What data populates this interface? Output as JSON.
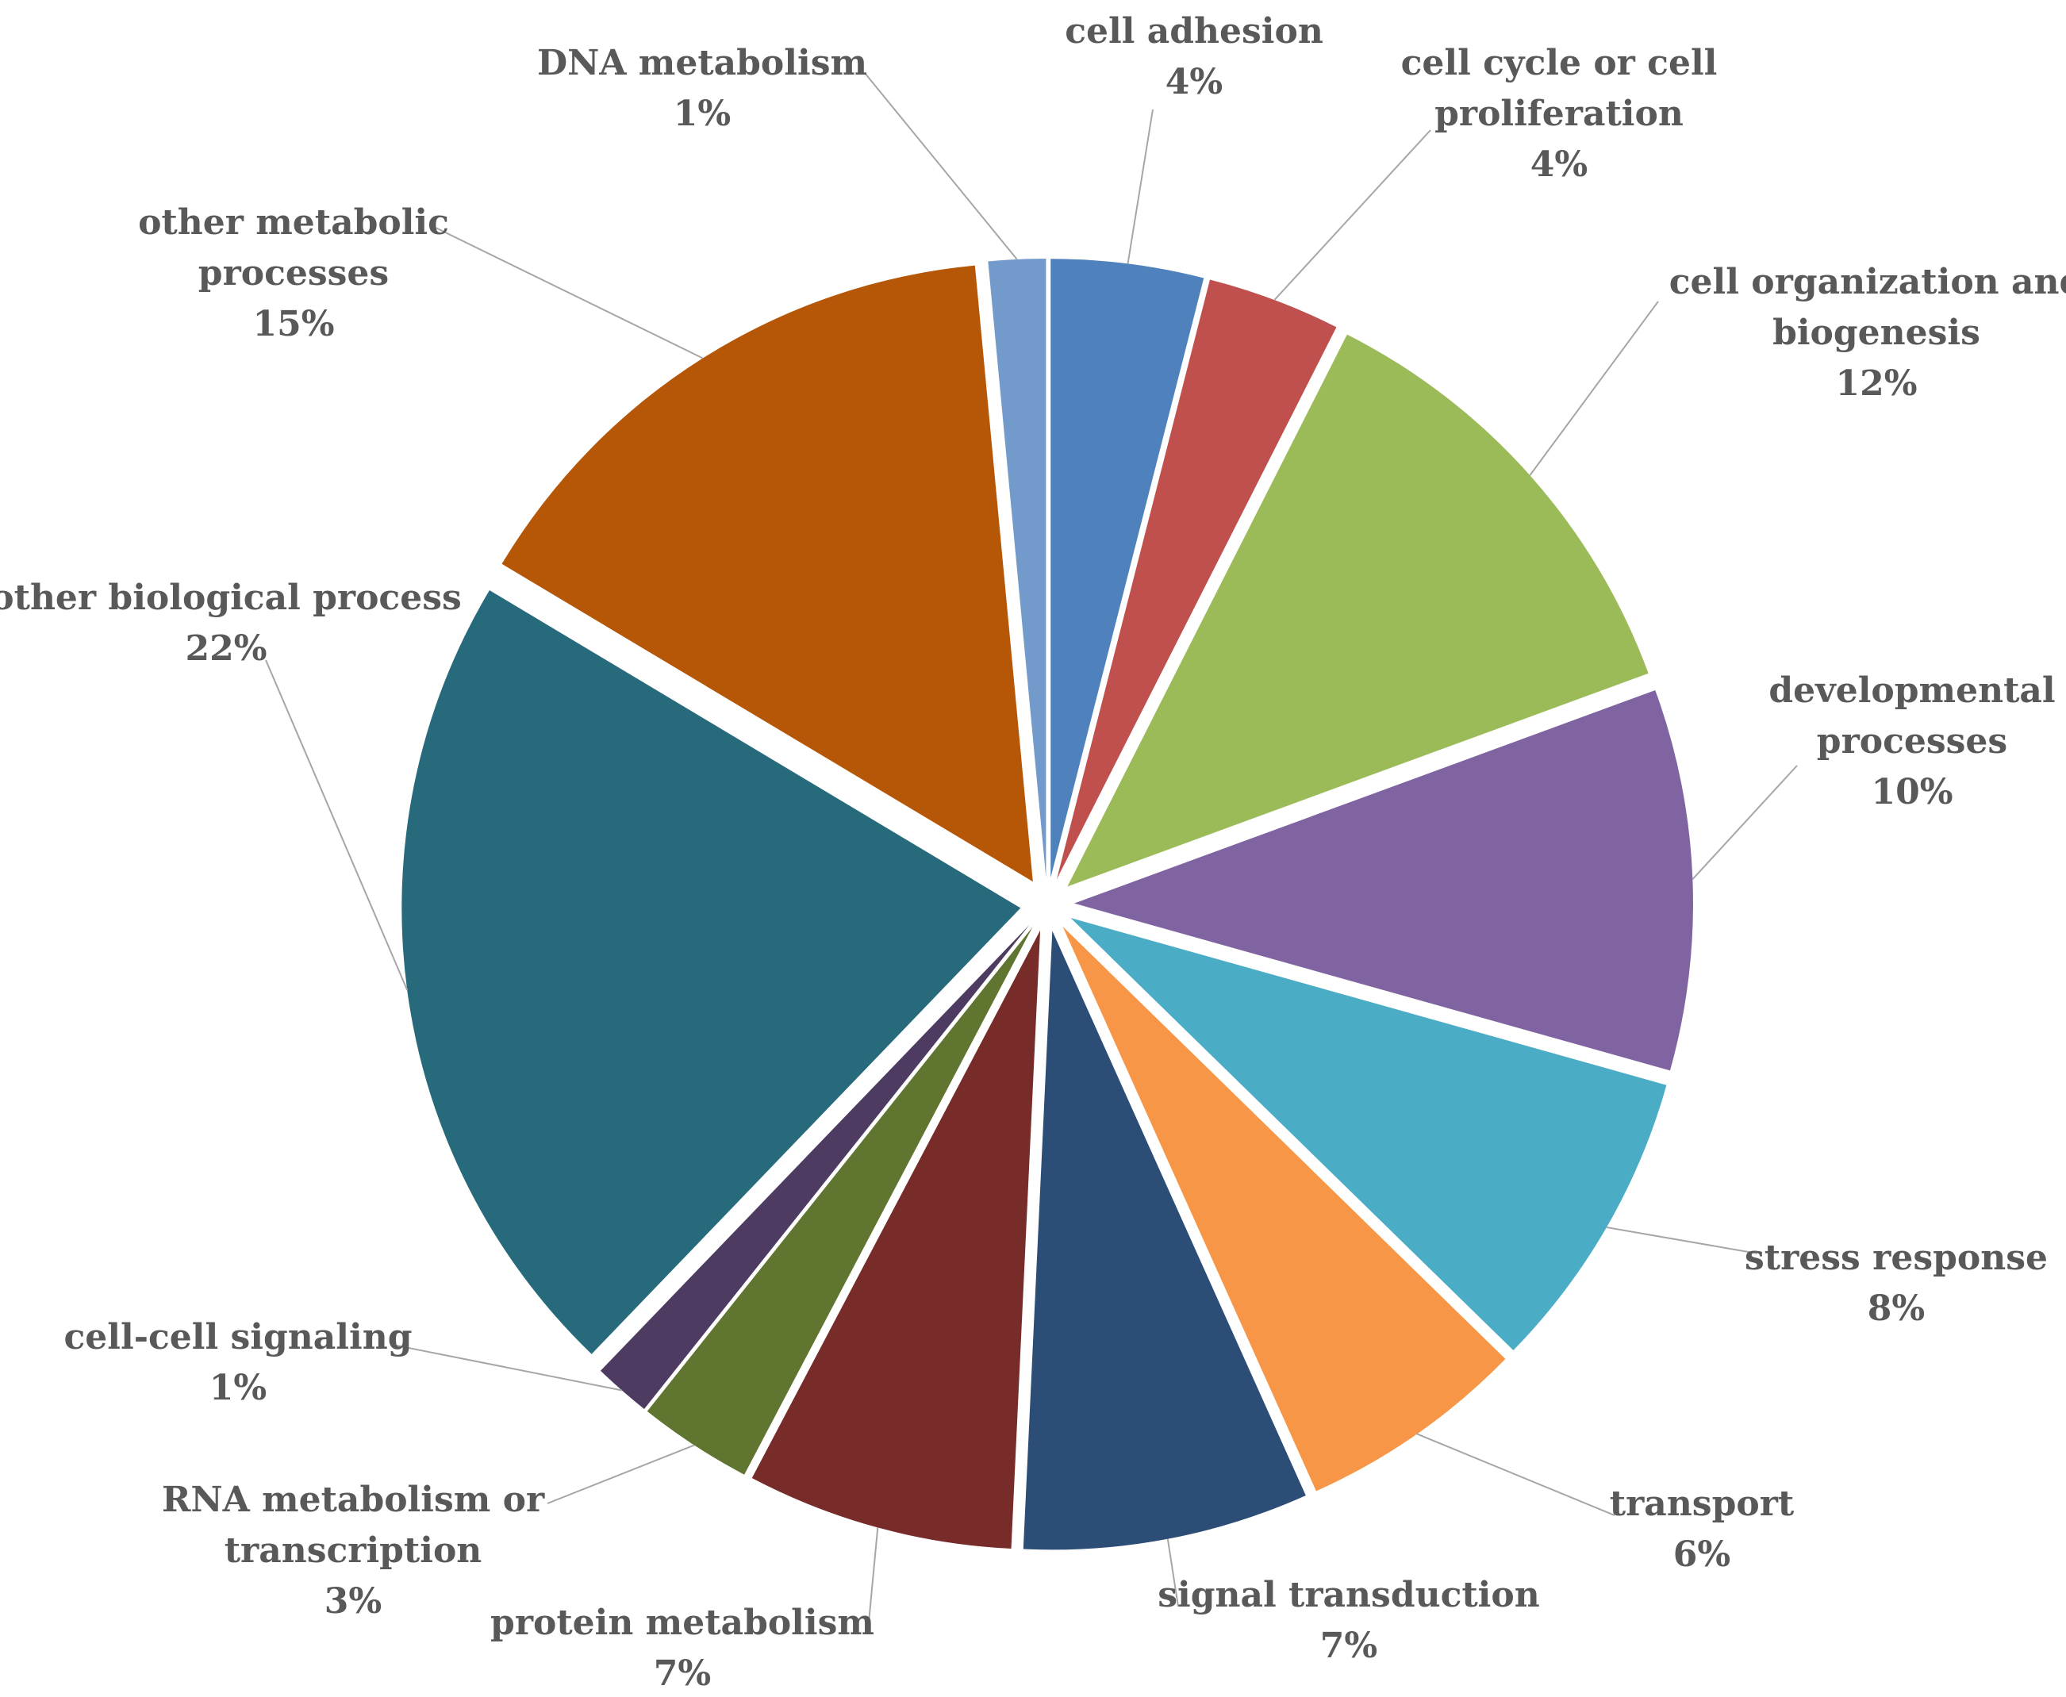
{
  "chart_data": {
    "type": "pie",
    "title": "",
    "exploded": true,
    "start_angle_deg": 0,
    "direction": "clockwise",
    "slices": [
      {
        "name": "cell adhesion",
        "label_lines": [
          "cell adhesion"
        ],
        "value": 4,
        "value_label": "4%",
        "color": "#4f81bd"
      },
      {
        "name": "cell cycle or cell proliferation",
        "label_lines": [
          "cell cycle or cell",
          "proliferation"
        ],
        "value": 3.5,
        "value_label": "4%",
        "color": "#c0504d"
      },
      {
        "name": "cell organization and biogenesis",
        "label_lines": [
          "cell organization and",
          "biogenesis"
        ],
        "value": 12,
        "value_label": "12%",
        "color": "#9bbb59"
      },
      {
        "name": "developmental processes",
        "label_lines": [
          "developmental",
          "processes"
        ],
        "value": 10,
        "value_label": "10%",
        "color": "#8064a2"
      },
      {
        "name": "stress response",
        "label_lines": [
          "stress response"
        ],
        "value": 8,
        "value_label": "8%",
        "color": "#4bacc6"
      },
      {
        "name": "transport",
        "label_lines": [
          "transport"
        ],
        "value": 6,
        "value_label": "6%",
        "color": "#f79646"
      },
      {
        "name": "signal transduction",
        "label_lines": [
          "signal transduction"
        ],
        "value": 7.5,
        "value_label": "7%",
        "color": "#2c4d75"
      },
      {
        "name": "protein metabolism",
        "label_lines": [
          "protein metabolism"
        ],
        "value": 7,
        "value_label": "7%",
        "color": "#772c2a"
      },
      {
        "name": "RNA metabolism or transcription",
        "label_lines": [
          "RNA metabolism or",
          "transcription"
        ],
        "value": 3,
        "value_label": "3%",
        "color": "#5f7530"
      },
      {
        "name": "cell-cell signaling",
        "label_lines": [
          "cell-cell signaling"
        ],
        "value": 1.5,
        "value_label": "1%",
        "color": "#4d3b62"
      },
      {
        "name": "other biological process",
        "label_lines": [
          "other biological process"
        ],
        "value": 21.5,
        "value_label": "22%",
        "color": "#276a7c"
      },
      {
        "name": "other metabolic processes",
        "label_lines": [
          "other metabolic",
          "processes"
        ],
        "value": 15,
        "value_label": "15%",
        "color": "#b65708"
      },
      {
        "name": "DNA metabolism",
        "label_lines": [
          "DNA metabolism"
        ],
        "value": 1.5,
        "value_label": "1%",
        "color": "#729aca"
      }
    ]
  }
}
